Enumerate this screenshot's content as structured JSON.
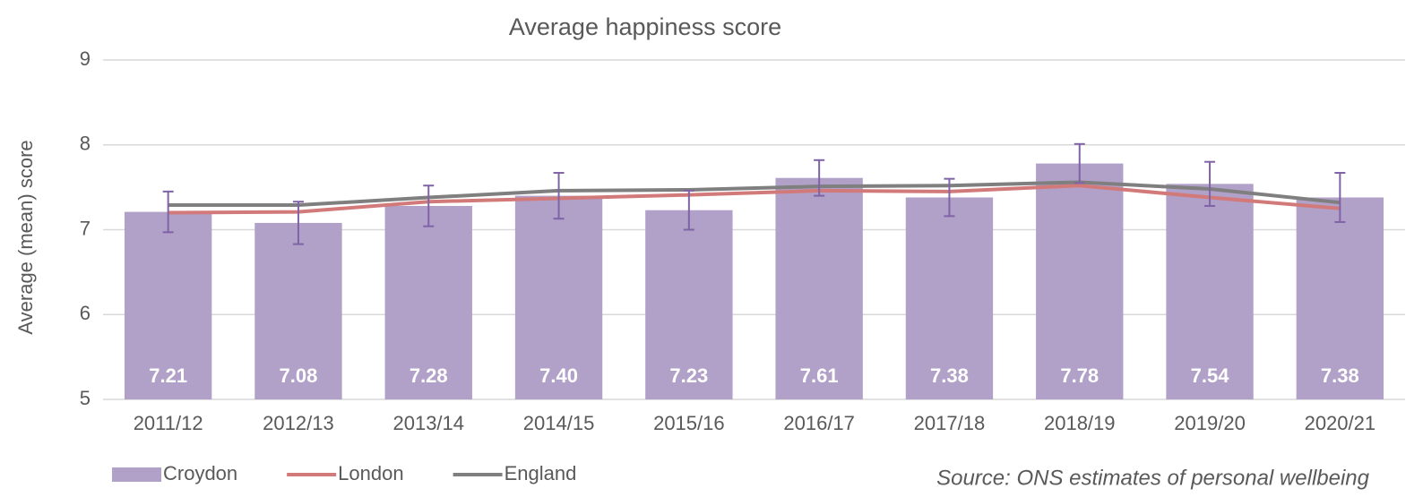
{
  "chart_data": {
    "type": "bar",
    "title": "Average happiness score",
    "y_label": "Average (mean) score",
    "source": "Source: ONS estimates of personal wellbeing",
    "categories": [
      "2011/12",
      "2012/13",
      "2013/14",
      "2014/15",
      "2015/16",
      "2016/17",
      "2017/18",
      "2018/19",
      "2019/20",
      "2020/21"
    ],
    "series": [
      {
        "name": "Croydon",
        "type": "bar",
        "color": "#b1a0c7",
        "error_color": "#7f63a6",
        "values": [
          7.21,
          7.08,
          7.28,
          7.4,
          7.23,
          7.61,
          7.38,
          7.78,
          7.54,
          7.38
        ],
        "value_labels": [
          "7.21",
          "7.08",
          "7.28",
          "7.40",
          "7.23",
          "7.61",
          "7.38",
          "7.78",
          "7.54",
          "7.38"
        ],
        "errors": [
          0.24,
          0.25,
          0.24,
          0.27,
          0.23,
          0.21,
          0.22,
          0.23,
          0.26,
          0.29
        ]
      },
      {
        "name": "London",
        "type": "line",
        "color": "#d27a7a",
        "values": [
          7.2,
          7.21,
          7.33,
          7.37,
          7.41,
          7.46,
          7.45,
          7.52,
          7.38,
          7.25
        ]
      },
      {
        "name": "England",
        "type": "line",
        "color": "#7f7f7f",
        "values": [
          7.29,
          7.29,
          7.38,
          7.46,
          7.47,
          7.51,
          7.52,
          7.56,
          7.48,
          7.32
        ]
      }
    ],
    "ylim": [
      5,
      9
    ],
    "yticks": [
      5,
      6,
      7,
      8,
      9
    ],
    "grid": true,
    "legend": "bottom-left"
  }
}
